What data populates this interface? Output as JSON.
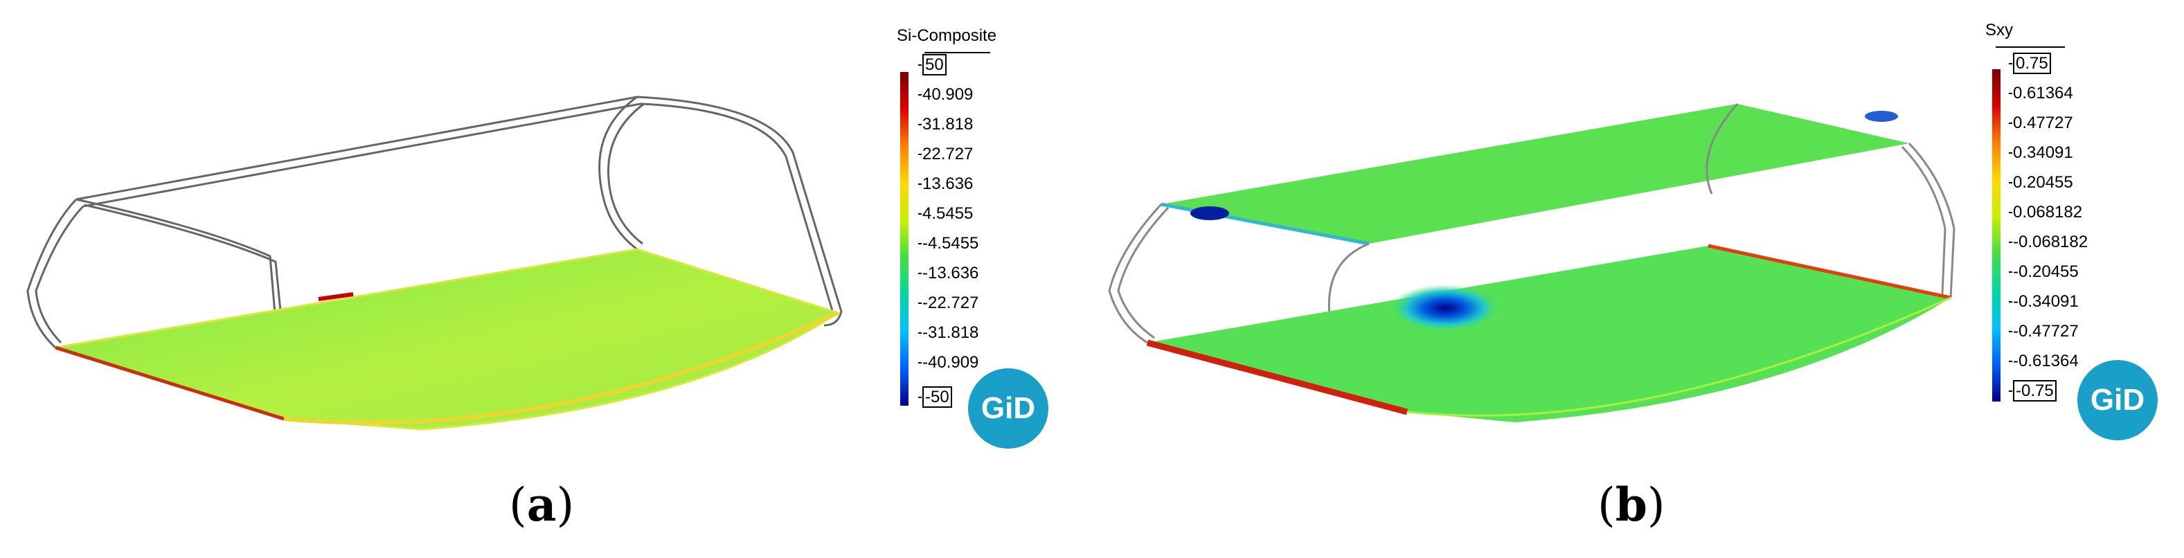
{
  "panels": [
    {
      "caption_letter": "a",
      "legend_title": "Si-Composite",
      "legend_ticks": [
        "50",
        "40.909",
        "31.818",
        "22.727",
        "13.636",
        "4.5455",
        "-4.5455",
        "-13.636",
        "-22.727",
        "-31.818",
        "-40.909",
        "-50"
      ],
      "logo_text": "GiD"
    },
    {
      "caption_letter": "b",
      "legend_title": "Sxy",
      "legend_ticks": [
        "0.75",
        "0.61364",
        "0.47727",
        "0.34091",
        "0.20455",
        "0.068182",
        "-0.068182",
        "-0.20455",
        "-0.34091",
        "-0.47727",
        "-0.61364",
        "-0.75"
      ],
      "logo_text": "GiD"
    }
  ],
  "colors": {
    "colorbar_stops": [
      "#7a0000",
      "#e00000",
      "#ff8000",
      "#ffd800",
      "#c8f000",
      "#40e040",
      "#00d8a0",
      "#00c0ff",
      "#0060ff",
      "#000090"
    ],
    "field_green": "#58e050",
    "field_yellow_green": "#b8f040",
    "logo_blue": "#1aa0c8"
  }
}
